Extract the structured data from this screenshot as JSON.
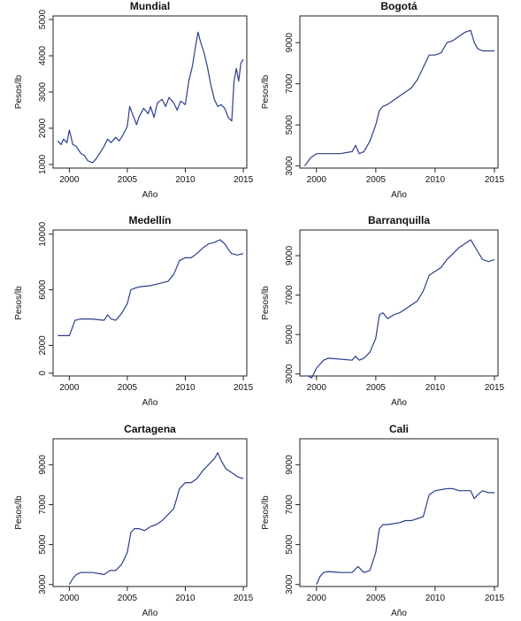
{
  "chart_data": [
    {
      "type": "line",
      "title": "Mundial",
      "xlabel": "Año",
      "ylabel": "Pesos/lb",
      "xlim": [
        1998.6,
        2015.3
      ],
      "ylim": [
        900,
        5100
      ],
      "xticks": [
        2000,
        2005,
        2010,
        2015
      ],
      "yticks": [
        1000,
        2000,
        3000,
        4000,
        5000
      ],
      "ytick_rotated": true,
      "series": [
        {
          "x": [
            1999,
            1999.3,
            1999.5,
            1999.8,
            2000,
            2000.3,
            2000.6,
            2001,
            2001.3,
            2001.6,
            2002,
            2002.3,
            2002.6,
            2003,
            2003.3,
            2003.6,
            2004,
            2004.3,
            2004.6,
            2005,
            2005.2,
            2005.5,
            2005.8,
            2006,
            2006.4,
            2006.8,
            2007,
            2007.3,
            2007.6,
            2008,
            2008.3,
            2008.6,
            2009,
            2009.3,
            2009.6,
            2010,
            2010.3,
            2010.6,
            2010.9,
            2011.1,
            2011.3,
            2011.6,
            2011.9,
            2012.2,
            2012.5,
            2012.8,
            2013.1,
            2013.4,
            2013.7,
            2014,
            2014.2,
            2014.4,
            2014.6,
            2014.8,
            2015
          ],
          "y": [
            1650,
            1550,
            1700,
            1600,
            1950,
            1550,
            1500,
            1300,
            1250,
            1100,
            1050,
            1150,
            1300,
            1500,
            1700,
            1600,
            1750,
            1650,
            1800,
            2050,
            2600,
            2350,
            2100,
            2300,
            2550,
            2400,
            2600,
            2300,
            2700,
            2800,
            2600,
            2850,
            2700,
            2500,
            2750,
            2650,
            3300,
            3700,
            4300,
            4650,
            4400,
            4100,
            3700,
            3200,
            2800,
            2600,
            2650,
            2550,
            2300,
            2200,
            3300,
            3650,
            3300,
            3800,
            3900
          ]
        }
      ]
    },
    {
      "type": "line",
      "title": "Bogotá",
      "xlabel": "Año",
      "ylabel": "Pesos/lb",
      "xlim": [
        1998.6,
        2015.3
      ],
      "ylim": [
        2900,
        10300
      ],
      "xticks": [
        2000,
        2005,
        2010,
        2015
      ],
      "yticks": [
        3000,
        5000,
        7000,
        9000
      ],
      "ytick_rotated": true,
      "series": [
        {
          "x": [
            1999,
            1999.5,
            2000,
            2001,
            2002,
            2003,
            2003.3,
            2003.6,
            2004,
            2004.5,
            2005,
            2005.3,
            2005.6,
            2006,
            2006.5,
            2007,
            2007.5,
            2008,
            2008.5,
            2009,
            2009.5,
            2010,
            2010.5,
            2011,
            2011.5,
            2012,
            2012.5,
            2013,
            2013.3,
            2013.6,
            2014,
            2014.5,
            2015
          ],
          "y": [
            3000,
            3400,
            3600,
            3600,
            3600,
            3700,
            4000,
            3600,
            3700,
            4200,
            5000,
            5700,
            5900,
            6000,
            6200,
            6400,
            6600,
            6800,
            7200,
            7800,
            8400,
            8400,
            8500,
            9000,
            9100,
            9300,
            9500,
            9600,
            9000,
            8700,
            8600,
            8600,
            8600
          ]
        }
      ]
    },
    {
      "type": "line",
      "title": "Medellín",
      "xlabel": "Año",
      "ylabel": "Pesos/lb",
      "xlim": [
        1998.6,
        2015.3
      ],
      "ylim": [
        -200,
        10300
      ],
      "xticks": [
        2000,
        2005,
        2010,
        2015
      ],
      "yticks": [
        0,
        2000,
        6000,
        10000
      ],
      "ytick_rotated": true,
      "series": [
        {
          "x": [
            1999,
            2000,
            2000.5,
            2001,
            2002,
            2003,
            2003.3,
            2003.6,
            2004,
            2004.5,
            2005,
            2005.3,
            2005.6,
            2006,
            2007,
            2008,
            2008.5,
            2009,
            2009.5,
            2010,
            2010.5,
            2011,
            2011.5,
            2012,
            2012.5,
            2013,
            2013.4,
            2013.8,
            2014,
            2014.5,
            2015
          ],
          "y": [
            2700,
            2700,
            3800,
            3900,
            3900,
            3800,
            4200,
            3900,
            3800,
            4300,
            5000,
            6000,
            6100,
            6200,
            6300,
            6500,
            6600,
            7100,
            8100,
            8300,
            8300,
            8600,
            9000,
            9300,
            9400,
            9600,
            9300,
            8800,
            8600,
            8500,
            8600
          ]
        }
      ]
    },
    {
      "type": "line",
      "title": "Barranquilla",
      "xlabel": "Año",
      "ylabel": "Pesos/lb",
      "xlim": [
        1998.6,
        2015.3
      ],
      "ylim": [
        2900,
        10300
      ],
      "xticks": [
        2000,
        2005,
        2010,
        2015
      ],
      "yticks": [
        3000,
        5000,
        7000,
        9000
      ],
      "ytick_rotated": true,
      "series": [
        {
          "x": [
            1999,
            1999.3,
            1999.6,
            2000,
            2000.3,
            2000.6,
            2001,
            2002,
            2003,
            2003.3,
            2003.6,
            2004,
            2004.5,
            2005,
            2005.3,
            2005.6,
            2006,
            2006.5,
            2007,
            2007.5,
            2008,
            2008.5,
            2009,
            2009.5,
            2010,
            2010.5,
            2011,
            2011.5,
            2012,
            2012.5,
            2013,
            2013.3,
            2013.6,
            2014,
            2014.5,
            2015
          ],
          "y": [
            2900,
            2900,
            2800,
            3300,
            3500,
            3700,
            3800,
            3750,
            3700,
            3900,
            3700,
            3800,
            4100,
            4800,
            6000,
            6100,
            5800,
            6000,
            6100,
            6300,
            6500,
            6700,
            7200,
            8000,
            8200,
            8400,
            8800,
            9100,
            9400,
            9600,
            9800,
            9500,
            9200,
            8800,
            8700,
            8800
          ]
        }
      ]
    },
    {
      "type": "line",
      "title": "Cartagena",
      "xlabel": "Año",
      "ylabel": "Pesos/lb",
      "xlim": [
        1998.6,
        2015.3
      ],
      "ylim": [
        2900,
        10300
      ],
      "xticks": [
        2000,
        2005,
        2010,
        2015
      ],
      "yticks": [
        3000,
        5000,
        7000,
        9000
      ],
      "ytick_rotated": true,
      "series": [
        {
          "x": [
            2000,
            2000.3,
            2000.6,
            2001,
            2002,
            2003,
            2003.5,
            2004,
            2004.5,
            2005,
            2005.3,
            2005.6,
            2006,
            2006.5,
            2007,
            2007.5,
            2008,
            2008.5,
            2009,
            2009.5,
            2010,
            2010.5,
            2011,
            2011.5,
            2012,
            2012.5,
            2012.8,
            2013.1,
            2013.5,
            2014,
            2014.5,
            2015
          ],
          "y": [
            3000,
            3300,
            3500,
            3600,
            3600,
            3500,
            3700,
            3700,
            4000,
            4600,
            5600,
            5800,
            5800,
            5700,
            5900,
            6000,
            6200,
            6500,
            6800,
            7800,
            8100,
            8100,
            8300,
            8700,
            9000,
            9300,
            9600,
            9200,
            8800,
            8600,
            8400,
            8300
          ]
        }
      ]
    },
    {
      "type": "line",
      "title": "Cali",
      "xlabel": "Año",
      "ylabel": "Pesos/lb",
      "xlim": [
        1998.6,
        2015.3
      ],
      "ylim": [
        2900,
        10300
      ],
      "xticks": [
        2000,
        2005,
        2010,
        2015
      ],
      "yticks": [
        3000,
        5000,
        7000,
        9000
      ],
      "ytick_rotated": true,
      "series": [
        {
          "x": [
            2000,
            2000.3,
            2000.6,
            2001,
            2002,
            2003,
            2003.5,
            2004,
            2004.5,
            2005,
            2005.3,
            2005.6,
            2006,
            2007,
            2007.5,
            2008,
            2008.5,
            2009,
            2009.5,
            2010,
            2011,
            2011.5,
            2012,
            2012.5,
            2013,
            2013.3,
            2013.6,
            2014,
            2014.5,
            2015
          ],
          "y": [
            3000,
            3400,
            3600,
            3650,
            3600,
            3600,
            3900,
            3600,
            3700,
            4600,
            5800,
            6000,
            6000,
            6100,
            6200,
            6200,
            6300,
            6400,
            7500,
            7700,
            7800,
            7800,
            7700,
            7700,
            7700,
            7300,
            7500,
            7700,
            7600,
            7600
          ]
        }
      ]
    }
  ]
}
